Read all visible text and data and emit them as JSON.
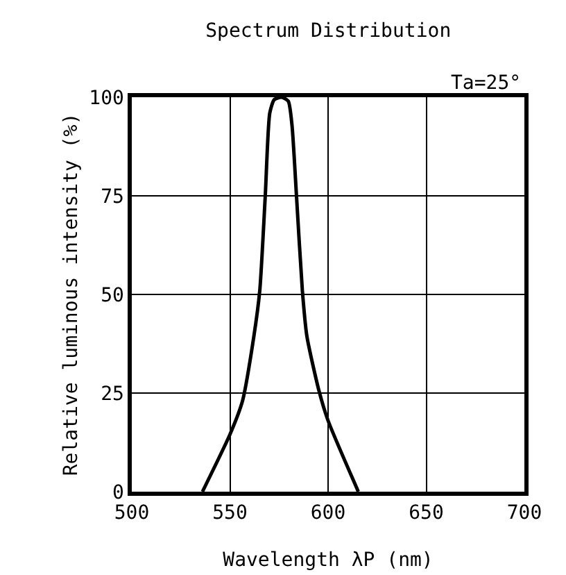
{
  "chart_data": {
    "type": "line",
    "title": "Spectrum Distribution",
    "xlabel": "Wavelength λP (nm)",
    "ylabel": "Relative luminous intensity (%)",
    "annotations": [
      "Ta=25°"
    ],
    "series": [
      {
        "color": "#000000",
        "x": [
          536,
          550,
          556.4,
          562.2,
          565.2,
          568,
          570.3,
          572.6,
          576.3,
          579.7,
          581.6,
          583.9,
          586.9,
          589.2,
          595.4,
          600,
          615.4
        ],
        "values": [
          0,
          14.5,
          23,
          39.4,
          51,
          75,
          96,
          99.4,
          100,
          99,
          93,
          75,
          51,
          39.4,
          25.5,
          18,
          0
        ]
      }
    ],
    "xlim": [
      500,
      700
    ],
    "xticks": [
      500,
      550,
      600,
      650,
      700
    ],
    "ylim": [
      0,
      100
    ],
    "yticks": [
      0,
      25,
      50,
      75,
      100
    ],
    "grid": true,
    "legend": false,
    "marker": "none",
    "line_style": "solid"
  }
}
